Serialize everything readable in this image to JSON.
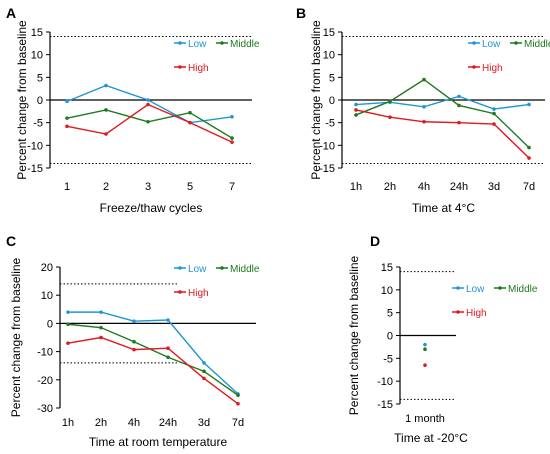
{
  "colors": {
    "Low": "#2196d3",
    "Middle": "#1e7a1e",
    "High": "#e0191e",
    "axis": "#000000"
  },
  "chart_data": [
    {
      "panel": "A",
      "type": "line",
      "categories": [
        "1",
        "2",
        "3",
        "5",
        "7"
      ],
      "xlabel": "Freeze/thaw cycles",
      "ylabel": "Percent change from baseline",
      "ylim": [
        -15,
        15
      ],
      "yticks": [
        15,
        10,
        5,
        0,
        -5,
        -10,
        -15
      ],
      "thresholds": [
        14,
        -14
      ],
      "legend": [
        "Low",
        "Middle",
        "High"
      ],
      "series": [
        {
          "name": "Low",
          "values": [
            -0.3,
            3.2,
            0.0,
            -5.0,
            -3.7
          ]
        },
        {
          "name": "Middle",
          "values": [
            -4.0,
            -2.2,
            -4.8,
            -2.8,
            -8.4
          ]
        },
        {
          "name": "High",
          "values": [
            -5.8,
            -7.5,
            -1.0,
            -5.0,
            -9.3
          ]
        }
      ]
    },
    {
      "panel": "B",
      "type": "line",
      "categories": [
        "1h",
        "2h",
        "4h",
        "24h",
        "3d",
        "7d"
      ],
      "xlabel": "Time at 4°C",
      "ylabel": "Percent change from baseline",
      "ylim": [
        -15,
        15
      ],
      "yticks": [
        15,
        10,
        5,
        0,
        -5,
        -10,
        -15
      ],
      "thresholds": [
        14,
        -14
      ],
      "legend": [
        "Low",
        "Middle",
        "High"
      ],
      "series": [
        {
          "name": "Low",
          "values": [
            -1.0,
            -0.5,
            -1.5,
            0.8,
            -2.0,
            -1.0
          ]
        },
        {
          "name": "Middle",
          "values": [
            -3.3,
            -0.3,
            4.5,
            -1.2,
            -3.0,
            -10.5
          ]
        },
        {
          "name": "High",
          "values": [
            -2.2,
            -3.8,
            -4.8,
            -5.0,
            -5.3,
            -12.8
          ]
        }
      ]
    },
    {
      "panel": "C",
      "type": "line",
      "categories": [
        "1h",
        "2h",
        "4h",
        "24h",
        "3d",
        "7d"
      ],
      "xlabel": "Time at room temperature",
      "ylabel": "Percent change from baseline",
      "ylim": [
        -30,
        20
      ],
      "yticks": [
        20,
        10,
        0,
        -10,
        -20,
        -30
      ],
      "thresholds": [
        14,
        -14
      ],
      "legend": [
        "Low",
        "Middle",
        "High"
      ],
      "series": [
        {
          "name": "Low",
          "values": [
            4.0,
            4.0,
            0.8,
            1.2,
            -14.0,
            -25.0
          ]
        },
        {
          "name": "Middle",
          "values": [
            -0.3,
            -1.5,
            -6.5,
            -12.0,
            -17.0,
            -25.5
          ]
        },
        {
          "name": "High",
          "values": [
            -7.0,
            -5.0,
            -9.3,
            -8.8,
            -19.5,
            -28.5
          ]
        }
      ]
    },
    {
      "panel": "D",
      "type": "scatter",
      "categories": [
        "1 month"
      ],
      "xlabel": "Time at -20°C",
      "ylabel": "Percent change from baseline",
      "ylim": [
        -15,
        15
      ],
      "yticks": [
        15,
        10,
        5,
        0,
        -5,
        -10,
        -15
      ],
      "thresholds": [
        14,
        -14
      ],
      "legend": [
        "Low",
        "Middle",
        "High"
      ],
      "series": [
        {
          "name": "Low",
          "values": [
            -2.0
          ]
        },
        {
          "name": "Middle",
          "values": [
            -3.0
          ]
        },
        {
          "name": "High",
          "values": [
            -6.5
          ]
        }
      ]
    }
  ]
}
